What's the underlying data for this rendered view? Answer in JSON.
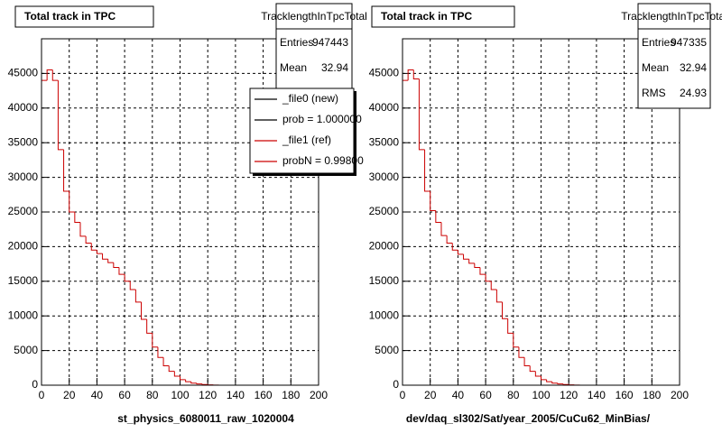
{
  "chart_data": [
    {
      "type": "histogram",
      "title": "Total track in TPC",
      "x_label": "st_physics_6080011_raw_1020004",
      "bins": [
        0,
        4,
        8,
        12,
        16,
        20,
        24,
        28,
        32,
        36,
        40,
        44,
        48,
        52,
        56,
        60,
        64,
        68,
        72,
        76,
        80,
        84,
        88,
        92,
        96,
        100,
        104,
        108,
        112,
        116,
        120,
        124,
        128,
        132,
        136,
        140,
        144,
        148,
        152,
        156,
        160,
        164,
        168,
        172,
        176,
        180,
        184,
        188,
        192,
        196,
        200
      ],
      "values": [
        44000,
        45500,
        44000,
        34000,
        28000,
        25000,
        23500,
        21500,
        20500,
        19500,
        19000,
        18200,
        17700,
        17000,
        16000,
        15000,
        13800,
        12000,
        9500,
        7500,
        5500,
        4000,
        2800,
        2000,
        1300,
        800,
        500,
        300,
        180,
        100,
        50,
        20,
        0,
        0,
        0,
        0,
        0,
        0,
        0,
        0,
        0,
        0,
        0,
        0,
        0,
        0,
        0,
        0,
        0,
        0
      ],
      "color": "#cc0000",
      "xlim": [
        0,
        200
      ],
      "ylim": [
        0,
        50000
      ],
      "xticks": [
        0,
        20,
        40,
        60,
        80,
        100,
        120,
        140,
        160,
        180,
        200
      ],
      "yticks": [
        0,
        5000,
        10000,
        15000,
        20000,
        25000,
        30000,
        35000,
        40000,
        45000
      ],
      "grid": true,
      "stats": {
        "title": "TracklengthInTpcTotal",
        "rows": [
          {
            "label": "Entries",
            "value": 947443
          },
          {
            "label": "Mean",
            "value": 32.94
          }
        ]
      },
      "legend": [
        {
          "label": "_file0 (new)",
          "color": "#000000"
        },
        {
          "label": "prob = 1.000000",
          "color": "#000000"
        },
        {
          "label": "_file1 (ref)",
          "color": "#cc0000"
        },
        {
          "label": "probN = 0.99800",
          "color": "#cc0000"
        }
      ]
    },
    {
      "type": "histogram",
      "title": "Total track in TPC",
      "x_label": "dev/daq_sl302/Sat/year_2005/CuCu62_MinBias/",
      "bins": [
        0,
        4,
        8,
        12,
        16,
        20,
        24,
        28,
        32,
        36,
        40,
        44,
        48,
        52,
        56,
        60,
        64,
        68,
        72,
        76,
        80,
        84,
        88,
        92,
        96,
        100,
        104,
        108,
        112,
        116,
        120,
        124,
        128,
        132,
        136,
        140,
        144,
        148,
        152,
        156,
        160,
        164,
        168,
        172,
        176,
        180,
        184,
        188,
        192,
        196,
        200
      ],
      "values": [
        44000,
        45500,
        44200,
        34000,
        28000,
        25200,
        23500,
        21600,
        20500,
        19500,
        18900,
        18200,
        17600,
        17000,
        16000,
        15000,
        13800,
        12000,
        9600,
        7500,
        5500,
        4000,
        2800,
        2000,
        1300,
        800,
        500,
        300,
        180,
        100,
        50,
        20,
        0,
        0,
        0,
        0,
        0,
        0,
        0,
        0,
        0,
        0,
        0,
        0,
        0,
        0,
        0,
        0,
        0,
        0
      ],
      "color": "#cc0000",
      "xlim": [
        0,
        200
      ],
      "ylim": [
        0,
        50000
      ],
      "xticks": [
        0,
        20,
        40,
        60,
        80,
        100,
        120,
        140,
        160,
        180,
        200
      ],
      "yticks": [
        0,
        5000,
        10000,
        15000,
        20000,
        25000,
        30000,
        35000,
        40000,
        45000
      ],
      "grid": true,
      "stats": {
        "title": "TracklengthInTpcTotal",
        "rows": [
          {
            "label": "Entries",
            "value": 947335
          },
          {
            "label": "Mean",
            "value": 32.94
          },
          {
            "label": "RMS",
            "value": 24.93
          }
        ]
      }
    }
  ]
}
